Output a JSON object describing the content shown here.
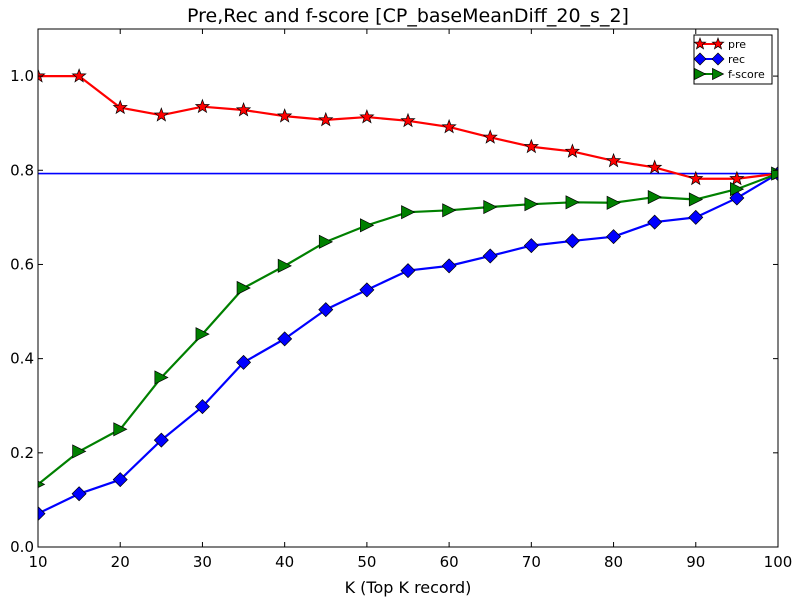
{
  "chart_data": {
    "type": "line",
    "title": "Pre,Rec and f-score [CP_baseMeanDiff_20_s_2]",
    "xlabel": "K (Top K record)",
    "ylabel": "",
    "xlim": [
      10,
      100
    ],
    "ylim": [
      0.0,
      1.1
    ],
    "xticks": [
      10,
      20,
      30,
      40,
      50,
      60,
      70,
      80,
      90,
      100
    ],
    "yticks": [
      0.0,
      0.2,
      0.4,
      0.6,
      0.8,
      1.0
    ],
    "xtick_labels": [
      "10",
      "20",
      "30",
      "40",
      "50",
      "60",
      "70",
      "80",
      "90",
      "100"
    ],
    "ytick_labels": [
      "0.0",
      "0.2",
      "0.4",
      "0.6",
      "0.8",
      "1.0"
    ],
    "grid": false,
    "legend_position": "top-right",
    "x": [
      10,
      15,
      20,
      25,
      30,
      35,
      40,
      45,
      50,
      55,
      60,
      65,
      70,
      75,
      80,
      85,
      90,
      95,
      100
    ],
    "series": [
      {
        "name": "pre",
        "color": "#ff0000",
        "marker": "star",
        "values": [
          1.0,
          1.0,
          0.933,
          0.917,
          0.935,
          0.928,
          0.915,
          0.907,
          0.913,
          0.905,
          0.892,
          0.87,
          0.85,
          0.84,
          0.82,
          0.806,
          0.782,
          0.782,
          0.793
        ]
      },
      {
        "name": "rec",
        "color": "#0000ff",
        "marker": "diamond",
        "values": [
          0.071,
          0.113,
          0.143,
          0.227,
          0.298,
          0.392,
          0.442,
          0.504,
          0.546,
          0.587,
          0.597,
          0.618,
          0.64,
          0.65,
          0.659,
          0.69,
          0.7,
          0.741,
          0.793
        ]
      },
      {
        "name": "f-score",
        "color": "#008000",
        "marker": "triangle-right",
        "values": [
          0.133,
          0.203,
          0.25,
          0.36,
          0.452,
          0.55,
          0.597,
          0.648,
          0.683,
          0.711,
          0.715,
          0.722,
          0.728,
          0.732,
          0.731,
          0.743,
          0.738,
          0.76,
          0.793
        ]
      }
    ],
    "reference_line": {
      "y": 0.793,
      "color": "#0000ff"
    }
  }
}
